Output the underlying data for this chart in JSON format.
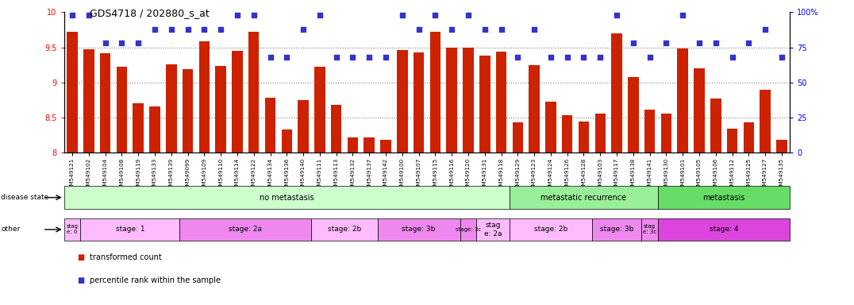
{
  "title": "GDS4718 / 202880_s_at",
  "samples": [
    "GSM549121",
    "GSM549102",
    "GSM549104",
    "GSM549108",
    "GSM549119",
    "GSM549133",
    "GSM549139",
    "GSM549099",
    "GSM549109",
    "GSM549110",
    "GSM549114",
    "GSM549122",
    "GSM549134",
    "GSM549136",
    "GSM549140",
    "GSM549111",
    "GSM549113",
    "GSM549132",
    "GSM549137",
    "GSM549142",
    "GSM549100",
    "GSM549107",
    "GSM549115",
    "GSM549116",
    "GSM549120",
    "GSM549131",
    "GSM549118",
    "GSM549129",
    "GSM549123",
    "GSM549124",
    "GSM549126",
    "GSM549128",
    "GSM549103",
    "GSM549117",
    "GSM549138",
    "GSM549141",
    "GSM549130",
    "GSM549101",
    "GSM549105",
    "GSM549106",
    "GSM549112",
    "GSM549125",
    "GSM549127",
    "GSM549135"
  ],
  "bar_values": [
    9.72,
    9.47,
    9.41,
    9.22,
    8.7,
    8.66,
    9.26,
    9.19,
    9.58,
    9.23,
    9.45,
    9.72,
    8.78,
    8.33,
    8.75,
    9.22,
    8.68,
    8.21,
    8.21,
    8.18,
    9.46,
    9.43,
    9.72,
    9.49,
    9.5,
    9.38,
    9.44,
    8.43,
    9.25,
    8.72,
    8.53,
    8.44,
    8.56,
    9.7,
    9.07,
    8.61,
    8.56,
    9.48,
    9.2,
    8.77,
    8.34,
    8.43,
    8.9,
    8.18
  ],
  "percentile_values": [
    98,
    98,
    78,
    78,
    78,
    88,
    88,
    88,
    88,
    88,
    98,
    98,
    68,
    68,
    88,
    98,
    68,
    68,
    68,
    68,
    98,
    88,
    98,
    88,
    98,
    88,
    88,
    68,
    88,
    68,
    68,
    68,
    68,
    98,
    78,
    68,
    78,
    98,
    78,
    78,
    68,
    78,
    88,
    68
  ],
  "bar_color": "#cc2200",
  "percentile_color": "#3333cc",
  "ylim_left": [
    8.0,
    10.0
  ],
  "ylim_right": [
    0,
    100
  ],
  "yticks_left": [
    8.0,
    8.5,
    9.0,
    9.5,
    10.0
  ],
  "ytick_labels_left": [
    "8",
    "8.5",
    "9",
    "9.5",
    "10"
  ],
  "yticks_right": [
    0,
    25,
    50,
    75,
    100
  ],
  "ytick_labels_right": [
    "0",
    "25",
    "50",
    "75",
    "100%"
  ],
  "disease_state_groups": [
    {
      "label": "no metastasis",
      "start": 0,
      "end": 27,
      "color": "#ccffcc"
    },
    {
      "label": "metastatic recurrence",
      "start": 27,
      "end": 36,
      "color": "#99ee99"
    },
    {
      "label": "metastasis",
      "start": 36,
      "end": 44,
      "color": "#66dd66"
    }
  ],
  "stage_groups": [
    {
      "label": "stag\ne: 0",
      "start": 0,
      "end": 1,
      "color": "#ffbbff"
    },
    {
      "label": "stage: 1",
      "start": 1,
      "end": 7,
      "color": "#ffbbff"
    },
    {
      "label": "stage: 2a",
      "start": 7,
      "end": 15,
      "color": "#ee88ee"
    },
    {
      "label": "stage: 2b",
      "start": 15,
      "end": 19,
      "color": "#ffbbff"
    },
    {
      "label": "stage: 3b",
      "start": 19,
      "end": 24,
      "color": "#ee88ee"
    },
    {
      "label": "stage: 3c",
      "start": 24,
      "end": 25,
      "color": "#ee88ee"
    },
    {
      "label": "stag\ne: 2a",
      "start": 25,
      "end": 27,
      "color": "#ffbbff"
    },
    {
      "label": "stage: 2b",
      "start": 27,
      "end": 32,
      "color": "#ffbbff"
    },
    {
      "label": "stage: 3b",
      "start": 32,
      "end": 35,
      "color": "#ee88ee"
    },
    {
      "label": "stag\ne: 3c",
      "start": 35,
      "end": 36,
      "color": "#ee88ee"
    },
    {
      "label": "stage: 4",
      "start": 36,
      "end": 44,
      "color": "#dd44dd"
    }
  ],
  "legend_items": [
    {
      "label": "transformed count",
      "color": "#cc2200",
      "marker": "s"
    },
    {
      "label": "percentile rank within the sample",
      "color": "#3333cc",
      "marker": "s"
    }
  ],
  "background_color": "#ffffff",
  "grid_dotted_values": [
    8.5,
    9.0,
    9.5
  ]
}
